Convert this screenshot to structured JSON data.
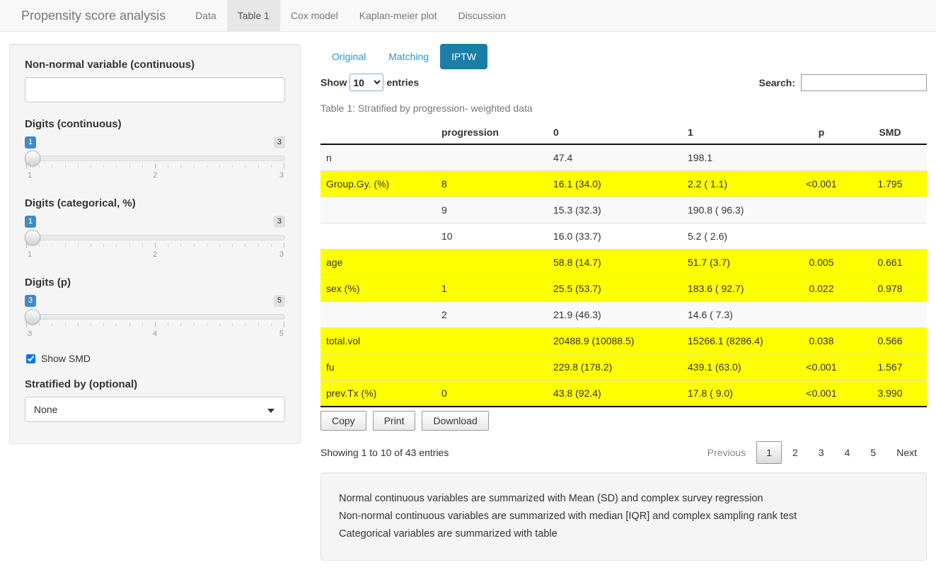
{
  "navbar": {
    "brand": "Propensity score analysis",
    "tabs": [
      {
        "label": "Data",
        "active": false
      },
      {
        "label": "Table 1",
        "active": true
      },
      {
        "label": "Cox model",
        "active": false
      },
      {
        "label": "Kaplan-meier plot",
        "active": false
      },
      {
        "label": "Discussion",
        "active": false
      }
    ]
  },
  "sidebar": {
    "nonnormal": {
      "label": "Non-normal variable (continuous)",
      "value": "",
      "placeholder": ""
    },
    "sliders": [
      {
        "label": "Digits (continuous)",
        "value": "1",
        "min": "1",
        "mid": "2",
        "max": "3"
      },
      {
        "label": "Digits (categorical, %)",
        "value": "1",
        "min": "1",
        "mid": "2",
        "max": "3"
      },
      {
        "label": "Digits (p)",
        "value": "3",
        "min": "3",
        "mid": "4",
        "max": "5"
      }
    ],
    "smd": {
      "label": "Show SMD",
      "checked": true
    },
    "stratified": {
      "label": "Stratified by (optional)",
      "value": "None"
    }
  },
  "main": {
    "result_tabs": [
      {
        "label": "Original",
        "active": false
      },
      {
        "label": "Matching",
        "active": false
      },
      {
        "label": "IPTW",
        "active": true
      }
    ],
    "controls": {
      "show_label": "Show",
      "page_size": "10",
      "entries_label": "entries",
      "search_label": "Search:",
      "search_value": ""
    },
    "caption": "Table 1: Stratified by progression- weighted data",
    "table": {
      "headers": [
        "",
        "progression",
        "0",
        "1",
        "p",
        "SMD"
      ],
      "col_align": [
        "left",
        "left",
        "left",
        "left",
        "center",
        "center"
      ],
      "rows": [
        {
          "cells": [
            "n",
            "",
            "47.4",
            "198.1",
            "",
            ""
          ],
          "highlight": false
        },
        {
          "cells": [
            "Group.Gy. (%)",
            "8",
            "16.1 (34.0)",
            "2.2 ( 1.1)",
            "<0.001",
            "1.795"
          ],
          "highlight": true
        },
        {
          "cells": [
            "",
            "9",
            "15.3 (32.3)",
            "190.8 ( 96.3)",
            "",
            ""
          ],
          "highlight": false
        },
        {
          "cells": [
            "",
            "10",
            "16.0 (33.7)",
            "5.2 ( 2.6)",
            "",
            ""
          ],
          "highlight": false
        },
        {
          "cells": [
            "age",
            "",
            "58.8 (14.7)",
            "51.7 (3.7)",
            "0.005",
            "0.661"
          ],
          "highlight": true
        },
        {
          "cells": [
            "sex (%)",
            "1",
            "25.5 (53.7)",
            "183.6 ( 92.7)",
            "0.022",
            "0.978"
          ],
          "highlight": true
        },
        {
          "cells": [
            "",
            "2",
            "21.9 (46.3)",
            "14.6 ( 7.3)",
            "",
            ""
          ],
          "highlight": false
        },
        {
          "cells": [
            "total.vol",
            "",
            "20488.9 (10088.5)",
            "15266.1 (8286.4)",
            "0.038",
            "0.566"
          ],
          "highlight": true
        },
        {
          "cells": [
            "fu",
            "",
            "229.8 (178.2)",
            "439.1 (63.0)",
            "<0.001",
            "1.567"
          ],
          "highlight": true
        },
        {
          "cells": [
            "prev.Tx (%)",
            "0",
            "43.8 (92.4)",
            "17.8 ( 9.0)",
            "<0.001",
            "3.990"
          ],
          "highlight": true
        }
      ]
    },
    "buttons": [
      "Copy",
      "Print",
      "Download"
    ],
    "info": "Showing 1 to 10 of 43 entries",
    "pagination": {
      "previous": "Previous",
      "pages": [
        "1",
        "2",
        "3",
        "4",
        "5"
      ],
      "current": "1",
      "next": "Next"
    },
    "notes": [
      "Normal continuous variables are summarized with Mean (SD) and complex survey regression",
      "Non-normal continuous variables are summarized with median [IQR] and complex sampling rank test",
      "Categorical variables are summarized with table"
    ]
  },
  "colors": {
    "accent_link": "#2b96cc",
    "active_pill_bg": "#1b7ea6",
    "slider_badge_bg": "#428bca",
    "row_highlight": "#ffff00",
    "row_stripe": "#f9f9f9",
    "navbar_bg": "#f8f8f8",
    "navbar_active_bg": "#e7e7e7",
    "panel_bg": "#f5f5f5",
    "table_border_dark": "#111111"
  }
}
